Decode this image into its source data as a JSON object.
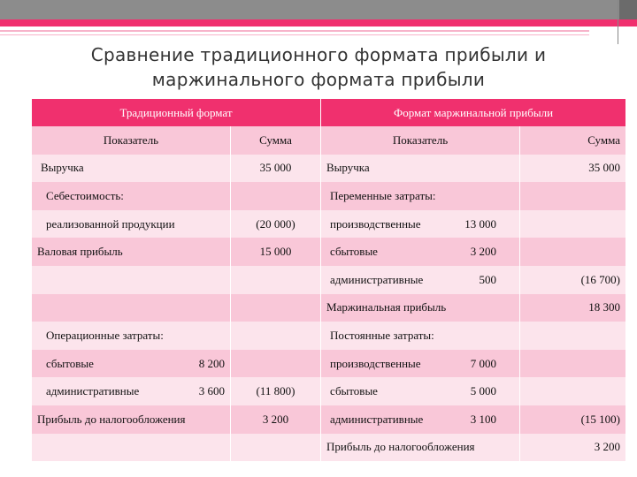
{
  "title_line1": "Сравнение традиционного формата прибыли и",
  "title_line2": "маржинального формата прибыли",
  "headers": {
    "traditional": "Традиционный формат",
    "marginal": "Формат маржинальной прибыли"
  },
  "subheaders": {
    "indicator": "Показатель",
    "sum": "Сумма"
  },
  "rows": [
    {
      "l_name": "Выручка",
      "l_val": "",
      "l_sum": "35 000",
      "r_name": "Выручка",
      "r_val": "",
      "r_sum": "35 000"
    },
    {
      "l_name": "Себестоимость:",
      "l_val": "",
      "l_sum": "",
      "r_name": "Переменные затраты:",
      "r_val": "",
      "r_sum": ""
    },
    {
      "l_name": "реализованной продукции",
      "l_val": "",
      "l_sum": "(20 000)",
      "r_name": "производственные",
      "r_val": "13 000",
      "r_sum": ""
    },
    {
      "l_name": "Валовая прибыль",
      "l_val": "",
      "l_sum": "15 000",
      "r_name": "сбытовые",
      "r_val": "3 200",
      "r_sum": ""
    },
    {
      "l_name": "",
      "l_val": "",
      "l_sum": "",
      "r_name": "административные",
      "r_val": "500",
      "r_sum": "(16 700)"
    },
    {
      "l_name": "",
      "l_val": "",
      "l_sum": "",
      "r_name": "Маржинальная прибыль",
      "r_val": "",
      "r_sum": "18 300"
    },
    {
      "l_name": "Операционные затраты:",
      "l_val": "",
      "l_sum": "",
      "r_name": "Постоянные затраты:",
      "r_val": "",
      "r_sum": ""
    },
    {
      "l_name": "сбытовые",
      "l_val": "8 200",
      "l_sum": "",
      "r_name": "производственные",
      "r_val": "7 000",
      "r_sum": ""
    },
    {
      "l_name": "административные",
      "l_val": "3 600",
      "l_sum": "(11 800)",
      "r_name": "сбытовые",
      "r_val": "5 000",
      "r_sum": ""
    },
    {
      "l_name": "Прибыль до налогообложения",
      "l_val": "",
      "l_sum": "3 200",
      "r_name": "административные",
      "r_val": "3 100",
      "r_sum": "(15 100)"
    },
    {
      "l_name": "",
      "l_val": "",
      "l_sum": "",
      "r_name": "Прибыль до налогообложения",
      "r_val": "",
      "r_sum": "3 200"
    }
  ]
}
